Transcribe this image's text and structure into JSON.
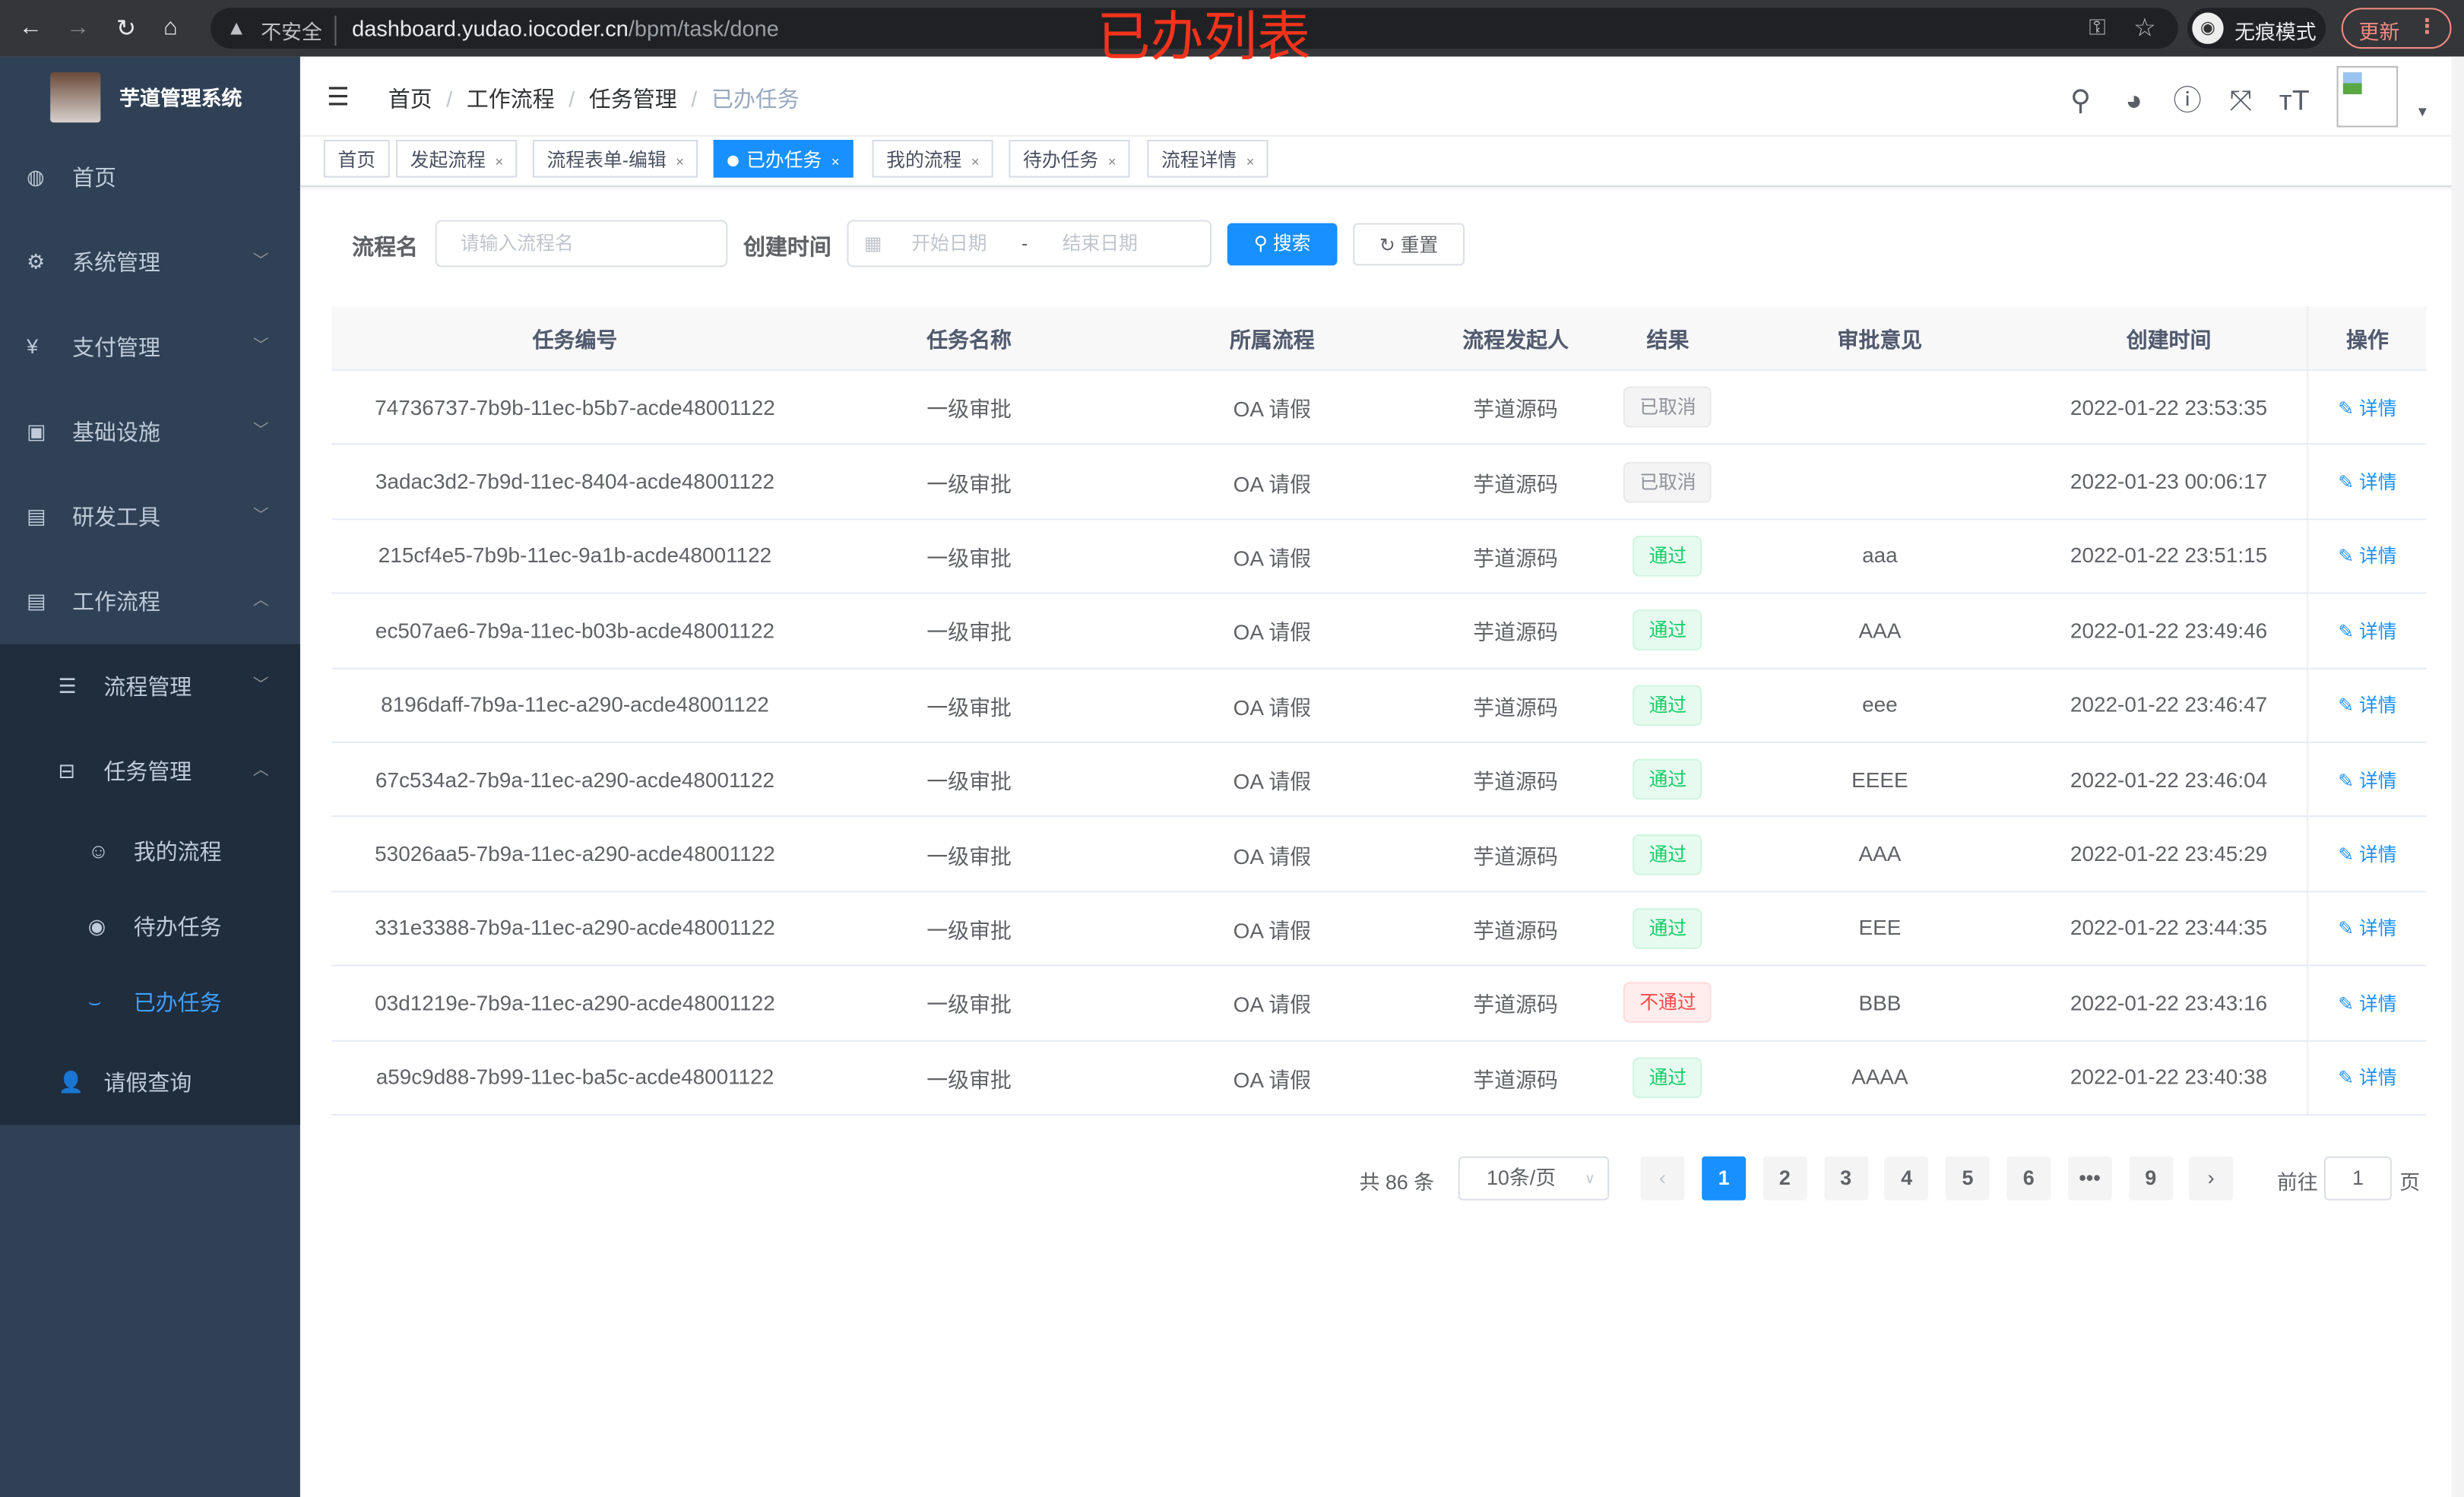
{
  "browser": {
    "security": "不安全",
    "url_host": "dashboard.yudao.iocoder.cn",
    "url_path": "/bpm/task/done",
    "incognito": "无痕模式",
    "update": "更新"
  },
  "overlay_title": "已办列表",
  "app": {
    "name": "芋道管理系统"
  },
  "sidebar": {
    "items": [
      {
        "label": "首页",
        "icon": "dashboard-icon"
      },
      {
        "label": "系统管理",
        "icon": "gear-icon"
      },
      {
        "label": "支付管理",
        "icon": "yen-icon"
      },
      {
        "label": "基础设施",
        "icon": "monitor-icon"
      },
      {
        "label": "研发工具",
        "icon": "toolbox-icon"
      },
      {
        "label": "工作流程",
        "icon": "toolbox-icon"
      }
    ],
    "workflow_children": [
      {
        "label": "流程管理"
      },
      {
        "label": "任务管理"
      },
      {
        "label": "请假查询"
      }
    ],
    "task_children": [
      {
        "label": "我的流程"
      },
      {
        "label": "待办任务"
      },
      {
        "label": "已办任务"
      }
    ]
  },
  "breadcrumb": [
    "首页",
    "工作流程",
    "任务管理",
    "已办任务"
  ],
  "tags": [
    "首页",
    "发起流程",
    "流程表单-编辑",
    "已办任务",
    "我的流程",
    "待办任务",
    "流程详情"
  ],
  "filter": {
    "name_label": "流程名",
    "name_placeholder": "请输入流程名",
    "time_label": "创建时间",
    "start_placeholder": "开始日期",
    "sep": "-",
    "end_placeholder": "结束日期",
    "search": "搜索",
    "reset": "重置"
  },
  "table": {
    "headers": [
      "任务编号",
      "任务名称",
      "所属流程",
      "流程发起人",
      "结果",
      "审批意见",
      "创建时间",
      "操作"
    ],
    "rows": [
      [
        "74736737-7b9b-11ec-b5b7-acde48001122",
        "一级审批",
        "OA 请假",
        "芋道源码",
        "已取消",
        "",
        "2022-01-22 23:53:35",
        "详情"
      ],
      [
        "3adac3d2-7b9d-11ec-8404-acde48001122",
        "一级审批",
        "OA 请假",
        "芋道源码",
        "已取消",
        "",
        "2022-01-23 00:06:17",
        "详情"
      ],
      [
        "215cf4e5-7b9b-11ec-9a1b-acde48001122",
        "一级审批",
        "OA 请假",
        "芋道源码",
        "通过",
        "aaa",
        "2022-01-22 23:51:15",
        "详情"
      ],
      [
        "ec507ae6-7b9a-11ec-b03b-acde48001122",
        "一级审批",
        "OA 请假",
        "芋道源码",
        "通过",
        "AAA",
        "2022-01-22 23:49:46",
        "详情"
      ],
      [
        "8196daff-7b9a-11ec-a290-acde48001122",
        "一级审批",
        "OA 请假",
        "芋道源码",
        "通过",
        "eee",
        "2022-01-22 23:46:47",
        "详情"
      ],
      [
        "67c534a2-7b9a-11ec-a290-acde48001122",
        "一级审批",
        "OA 请假",
        "芋道源码",
        "通过",
        "EEEE",
        "2022-01-22 23:46:04",
        "详情"
      ],
      [
        "53026aa5-7b9a-11ec-a290-acde48001122",
        "一级审批",
        "OA 请假",
        "芋道源码",
        "通过",
        "AAA",
        "2022-01-22 23:45:29",
        "详情"
      ],
      [
        "331e3388-7b9a-11ec-a290-acde48001122",
        "一级审批",
        "OA 请假",
        "芋道源码",
        "通过",
        "EEE",
        "2022-01-22 23:44:35",
        "详情"
      ],
      [
        "03d1219e-7b9a-11ec-a290-acde48001122",
        "一级审批",
        "OA 请假",
        "芋道源码",
        "不通过",
        "BBB",
        "2022-01-22 23:43:16",
        "详情"
      ],
      [
        "a59c9d88-7b99-11ec-ba5c-acde48001122",
        "一级审批",
        "OA 请假",
        "芋道源码",
        "通过",
        "AAAA",
        "2022-01-22 23:40:38",
        "详情"
      ]
    ]
  },
  "pagination": {
    "total": "共 86 条",
    "page_size": "10条/页",
    "pages": [
      "1",
      "2",
      "3",
      "4",
      "5",
      "6",
      "•••",
      "9"
    ],
    "current": "1",
    "goto_label": "前往",
    "goto_value": "1",
    "goto_suffix": "页"
  },
  "colors": {
    "primary": "#1890ff",
    "sidebar": "#304156",
    "pass": "#13ce66",
    "fail": "#ff4949",
    "cancel": "#909399"
  }
}
